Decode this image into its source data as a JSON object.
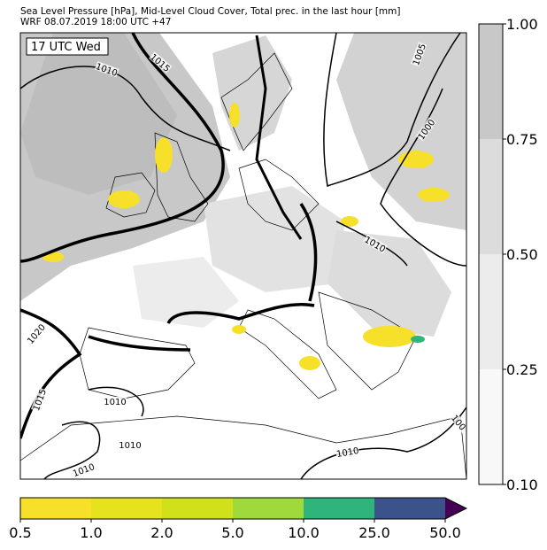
{
  "header": {
    "line1": "Sea Level Pressure [hPa], Mid-Level Cloud Cover, Total prec. in the last hour [mm]",
    "line2": "WRF 08.07.2019 18:00 UTC +47"
  },
  "map": {
    "time_label": "17 UTC Wed",
    "isobar_labels": [
      "1010",
      "1015",
      "1005",
      "1000",
      "1010",
      "1020",
      "1015",
      "1010",
      "1010",
      "1010",
      "1010",
      "100"
    ]
  },
  "cloud_colorbar": {
    "labels": [
      "1.00",
      "0.75",
      "0.50",
      "0.25",
      "0.10"
    ],
    "colors": [
      "#c8c8c8",
      "#dcdcdc",
      "#ececec",
      "#f8f8f8"
    ]
  },
  "precip_colorbar": {
    "labels": [
      "0.5",
      "1.0",
      "2.0",
      "5.0",
      "10.0",
      "25.0",
      "50.0"
    ],
    "colors": [
      "#f7e02a",
      "#e6e21d",
      "#d0e01b",
      "#9fd93b",
      "#2fb47b",
      "#3b528b",
      "#440154"
    ]
  }
}
